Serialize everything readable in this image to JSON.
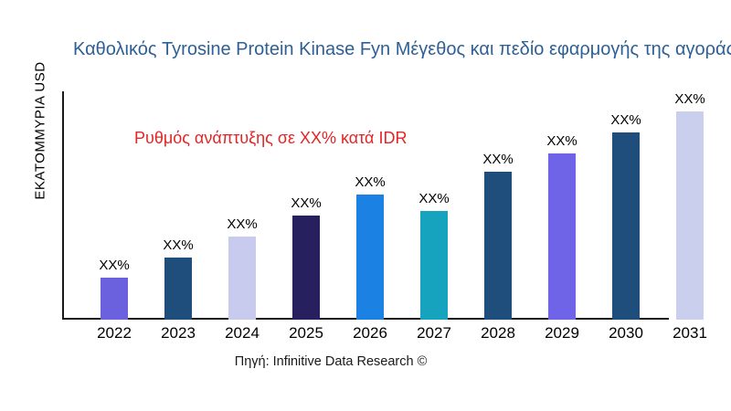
{
  "title": "Καθολικός Tyrosine Protein Kinase Fyn Μέγεθος και πεδίο εφαρμογής της αγοράς",
  "y_axis_label": "ΕΚΑΤΟΜΜΥΡΙΑ USD",
  "annotation": {
    "text": "Ρυθμός ανάπτυξης σε XX% κατά IDR",
    "color": "#e42527"
  },
  "footer": {
    "text": "Πηγή: Infinitive Data Research ©"
  },
  "colors": {
    "title": "#2e6095",
    "axis": "#1a1a1a",
    "bar_label": "#000000"
  },
  "chart_data": {
    "type": "bar",
    "title": "Καθολικός Tyrosine Protein Kinase Fyn Μέγεθος και πεδίο εφαρμογής της αγοράς",
    "xlabel": "",
    "ylabel": "ΕΚΑΤΟΜΜΥΡΙΑ USD",
    "categories": [
      "2022",
      "2023",
      "2024",
      "2025",
      "2026",
      "2027",
      "2028",
      "2029",
      "2030",
      "2031"
    ],
    "bar_labels": [
      "XX%",
      "XX%",
      "XX%",
      "XX%",
      "XX%",
      "XX%",
      "XX%",
      "XX%",
      "XX%",
      "XX%"
    ],
    "values_masked": true,
    "relative_heights_pct": [
      20,
      30,
      40,
      50,
      60,
      52,
      71,
      80,
      90,
      100
    ],
    "bar_colors": [
      "#6b61de",
      "#1f4e7c",
      "#c9cbee",
      "#26205f",
      "#1b81e3",
      "#15a3bd",
      "#1f4e7c",
      "#6f63e8",
      "#1f4e7c",
      "#cbcfee"
    ],
    "annotation": "Ρυθμός ανάπτυξης σε XX% κατά IDR",
    "grid": false,
    "legend": null
  }
}
